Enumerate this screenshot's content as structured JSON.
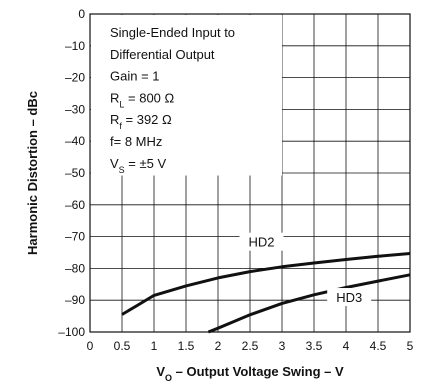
{
  "chart_data": {
    "type": "line",
    "xlabel_main": "V",
    "xlabel_sub": "O",
    "xlabel_rest": " – Output Voltage Swing – V",
    "ylabel": "Harmonic Distortion – dBc",
    "xlim": [
      0,
      5
    ],
    "ylim": [
      -100,
      0
    ],
    "x_ticks": [
      "0",
      "0.5",
      "1",
      "1.5",
      "2",
      "2.5",
      "3",
      "3.5",
      "4",
      "4.5",
      "5"
    ],
    "y_ticks": [
      "0",
      "–10",
      "–20",
      "–30",
      "–40",
      "–50",
      "–60",
      "–70",
      "–80",
      "–90",
      "–100"
    ],
    "grid": true,
    "annotation_lines": [
      {
        "text": "Single-Ended Input to"
      },
      {
        "text": "Differential Output"
      },
      {
        "text": "Gain = 1"
      },
      {
        "main": "R",
        "sub": "L",
        "rest": " = 800 Ω"
      },
      {
        "main": "R",
        "sub": "f",
        "rest": " = 392 Ω"
      },
      {
        "text": "f= 8 MHz"
      },
      {
        "main": "V",
        "sub": "S",
        "rest": " = ±5 V"
      }
    ],
    "series": [
      {
        "name": "HD2",
        "x": [
          0.5,
          0.75,
          1.0,
          1.25,
          1.5,
          2.0,
          2.5,
          3.0,
          3.5,
          4.0,
          4.5,
          5.0
        ],
        "y": [
          -94.5,
          -91.5,
          -88.5,
          -87.0,
          -85.5,
          -83.0,
          -81.0,
          -79.5,
          -78.3,
          -77.2,
          -76.2,
          -75.3
        ]
      },
      {
        "name": "HD3",
        "x": [
          1.85,
          2.0,
          2.25,
          2.5,
          3.0,
          3.5,
          4.0,
          4.5,
          5.0
        ],
        "y": [
          -100,
          -98.8,
          -96.7,
          -94.6,
          -91.0,
          -88.3,
          -86.0,
          -84.0,
          -82.0
        ]
      }
    ]
  }
}
